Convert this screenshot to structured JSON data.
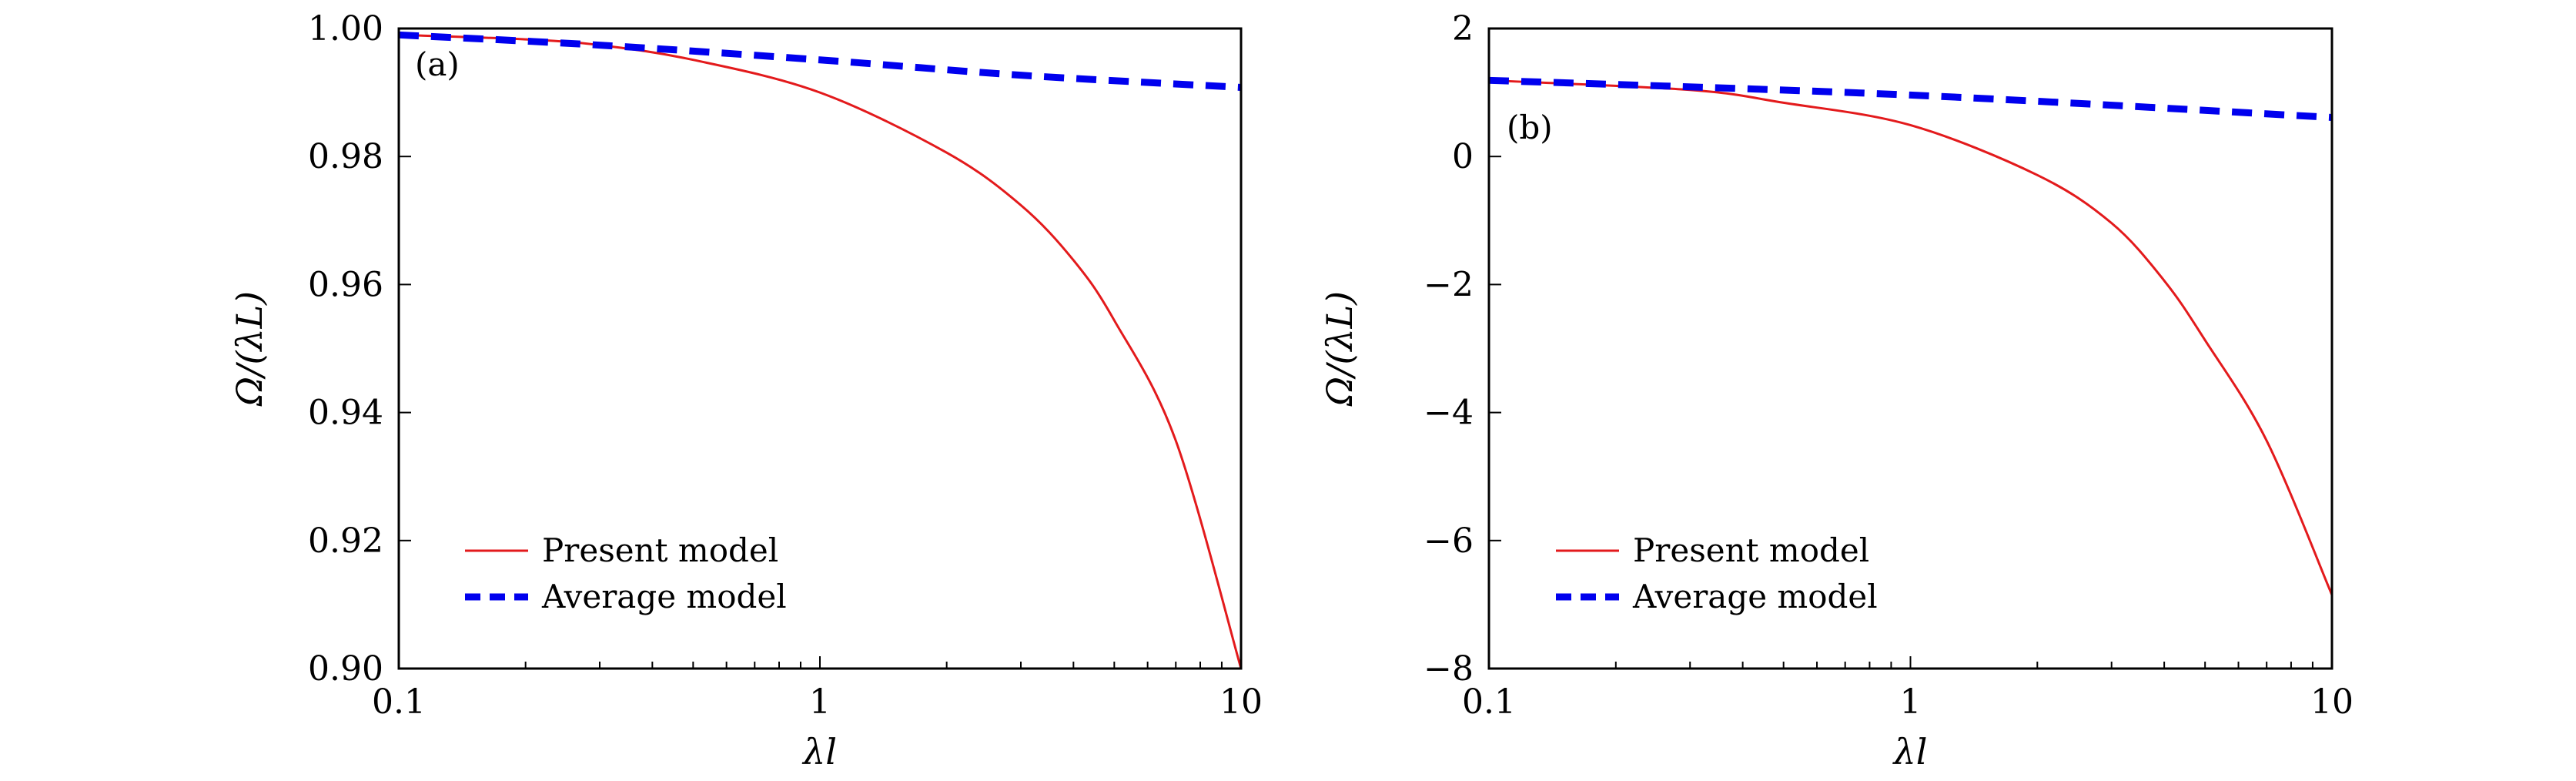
{
  "chart_data": [
    {
      "type": "line",
      "panel_label": "(a)",
      "xlabel": "λl",
      "ylabel": "Ω/(λL)",
      "xscale": "log",
      "xlim": [
        0.1,
        10
      ],
      "ylim": [
        0.9,
        1.0
      ],
      "xticks": [
        0.1,
        1,
        10
      ],
      "xtick_labels": [
        "0.1",
        "1",
        "10"
      ],
      "yticks": [
        0.9,
        0.92,
        0.94,
        0.96,
        0.98,
        1.0
      ],
      "ytick_labels": [
        "0.90",
        "0.92",
        "0.94",
        "0.96",
        "0.98",
        "1.00"
      ],
      "grid": false,
      "legend_position": "bottom-left",
      "series": [
        {
          "name": "Present model",
          "color": "#e31a1c",
          "style": "solid",
          "x": [
            0.1,
            0.2,
            0.3,
            0.5,
            1,
            2,
            3,
            4,
            5,
            7,
            10
          ],
          "y": [
            0.999,
            0.9983,
            0.9974,
            0.9951,
            0.99,
            0.9806,
            0.9724,
            0.9638,
            0.9544,
            0.9356,
            0.9
          ]
        },
        {
          "name": "Average model",
          "color": "#0000ee",
          "style": "dashed",
          "x": [
            0.1,
            0.3,
            1,
            3,
            10
          ],
          "y": [
            0.999,
            0.9974,
            0.9951,
            0.9927,
            0.9908
          ]
        }
      ]
    },
    {
      "type": "line",
      "panel_label": "(b)",
      "xlabel": "λl",
      "ylabel": "Ω/(λL)",
      "xscale": "log",
      "xlim": [
        0.1,
        10
      ],
      "ylim": [
        -8,
        2
      ],
      "xticks": [
        0.1,
        1,
        10
      ],
      "xtick_labels": [
        "0.1",
        "1",
        "10"
      ],
      "yticks": [
        -8,
        -6,
        -4,
        -2,
        0,
        2
      ],
      "ytick_labels": [
        "−8",
        "−6",
        "−4",
        "−2",
        "0",
        "2"
      ],
      "grid": false,
      "legend_position": "bottom-left",
      "series": [
        {
          "name": "Present model",
          "color": "#e31a1c",
          "style": "solid",
          "x": [
            0.1,
            0.3,
            0.5,
            1,
            2,
            3,
            4,
            5,
            7,
            10
          ],
          "y": [
            1.19,
            1.04,
            0.84,
            0.49,
            -0.29,
            -1.04,
            -1.94,
            -2.87,
            -4.44,
            -6.85
          ]
        },
        {
          "name": "Average model",
          "color": "#0000ee",
          "style": "dashed",
          "x": [
            0.1,
            1,
            10
          ],
          "y": [
            1.19,
            0.96,
            0.61
          ]
        }
      ]
    }
  ]
}
